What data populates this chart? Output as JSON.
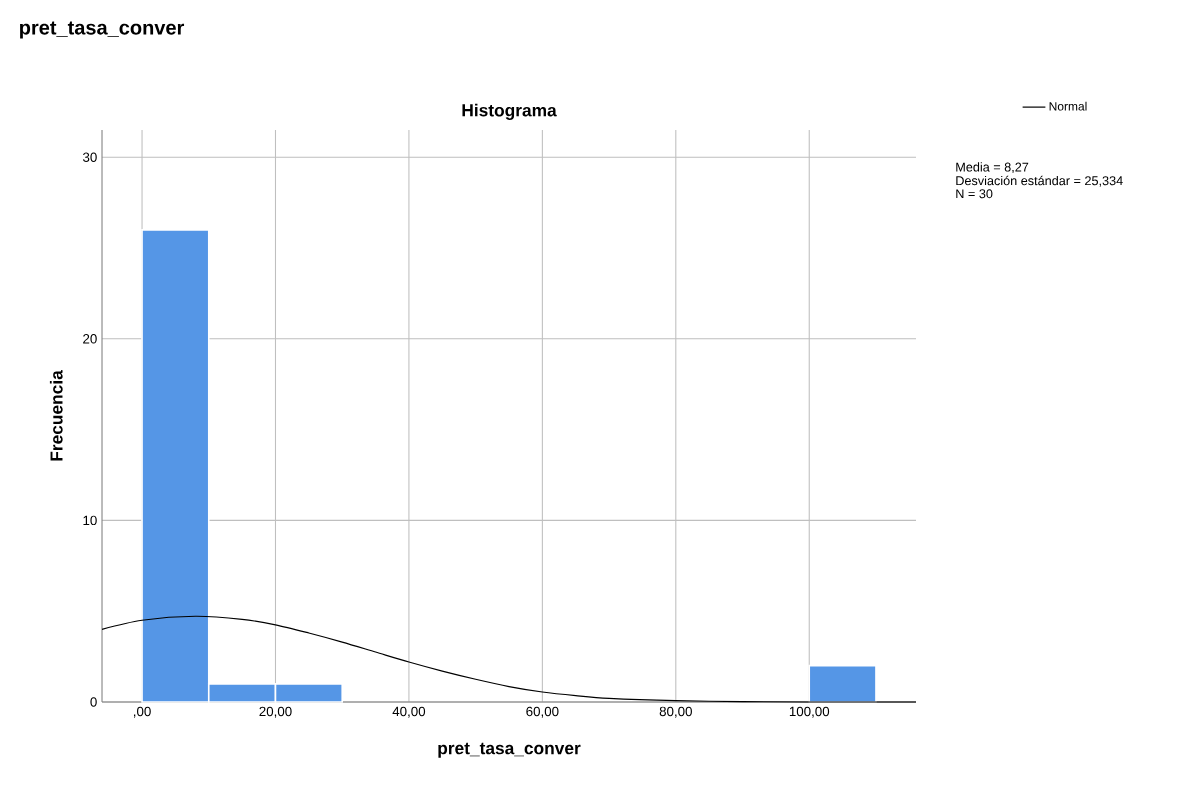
{
  "chart_data": {
    "type": "histogram",
    "title": "pret_tasa_conver",
    "subtitle": "Histograma",
    "xlabel": "pret_tasa_conver",
    "ylabel": "Frecuencia",
    "bins": [
      0,
      10,
      20,
      30,
      40,
      50,
      60,
      70,
      80,
      90,
      100,
      110
    ],
    "series": [
      {
        "color": "#5596e6",
        "values": [
          26,
          1,
          1,
          0,
          0,
          0,
          0,
          0,
          0,
          0,
          2
        ]
      },
      {
        "type": "line",
        "name": "Normal",
        "color": "#000000",
        "x": [
          -6,
          0,
          8,
          15,
          20,
          25,
          30,
          35,
          40,
          45,
          50,
          55,
          60,
          65,
          70,
          80,
          90,
          100,
          116
        ],
        "values": [
          4.0,
          4.5,
          4.72,
          4.55,
          4.25,
          3.8,
          3.3,
          2.75,
          2.2,
          1.7,
          1.25,
          0.85,
          0.55,
          0.35,
          0.2,
          0.07,
          0.02,
          0.0,
          0.0
        ]
      }
    ],
    "xlim": [
      -6,
      116
    ],
    "ylim": [
      0,
      31.5
    ],
    "xticks": [
      {
        "value": 0,
        "label": ",00"
      },
      {
        "value": 20,
        "label": "20,00"
      },
      {
        "value": 40,
        "label": "40,00"
      },
      {
        "value": 60,
        "label": "60,00"
      },
      {
        "value": 80,
        "label": "80,00"
      },
      {
        "value": 100,
        "label": "100,00"
      }
    ],
    "yticks": [
      0,
      10,
      20,
      30
    ],
    "grid": true,
    "legend": "top right",
    "marker": "none",
    "line_style": "solid",
    "annotations": [
      "Media = 8,27",
      "Desviación estándar = 25,334",
      "N = 30"
    ]
  }
}
